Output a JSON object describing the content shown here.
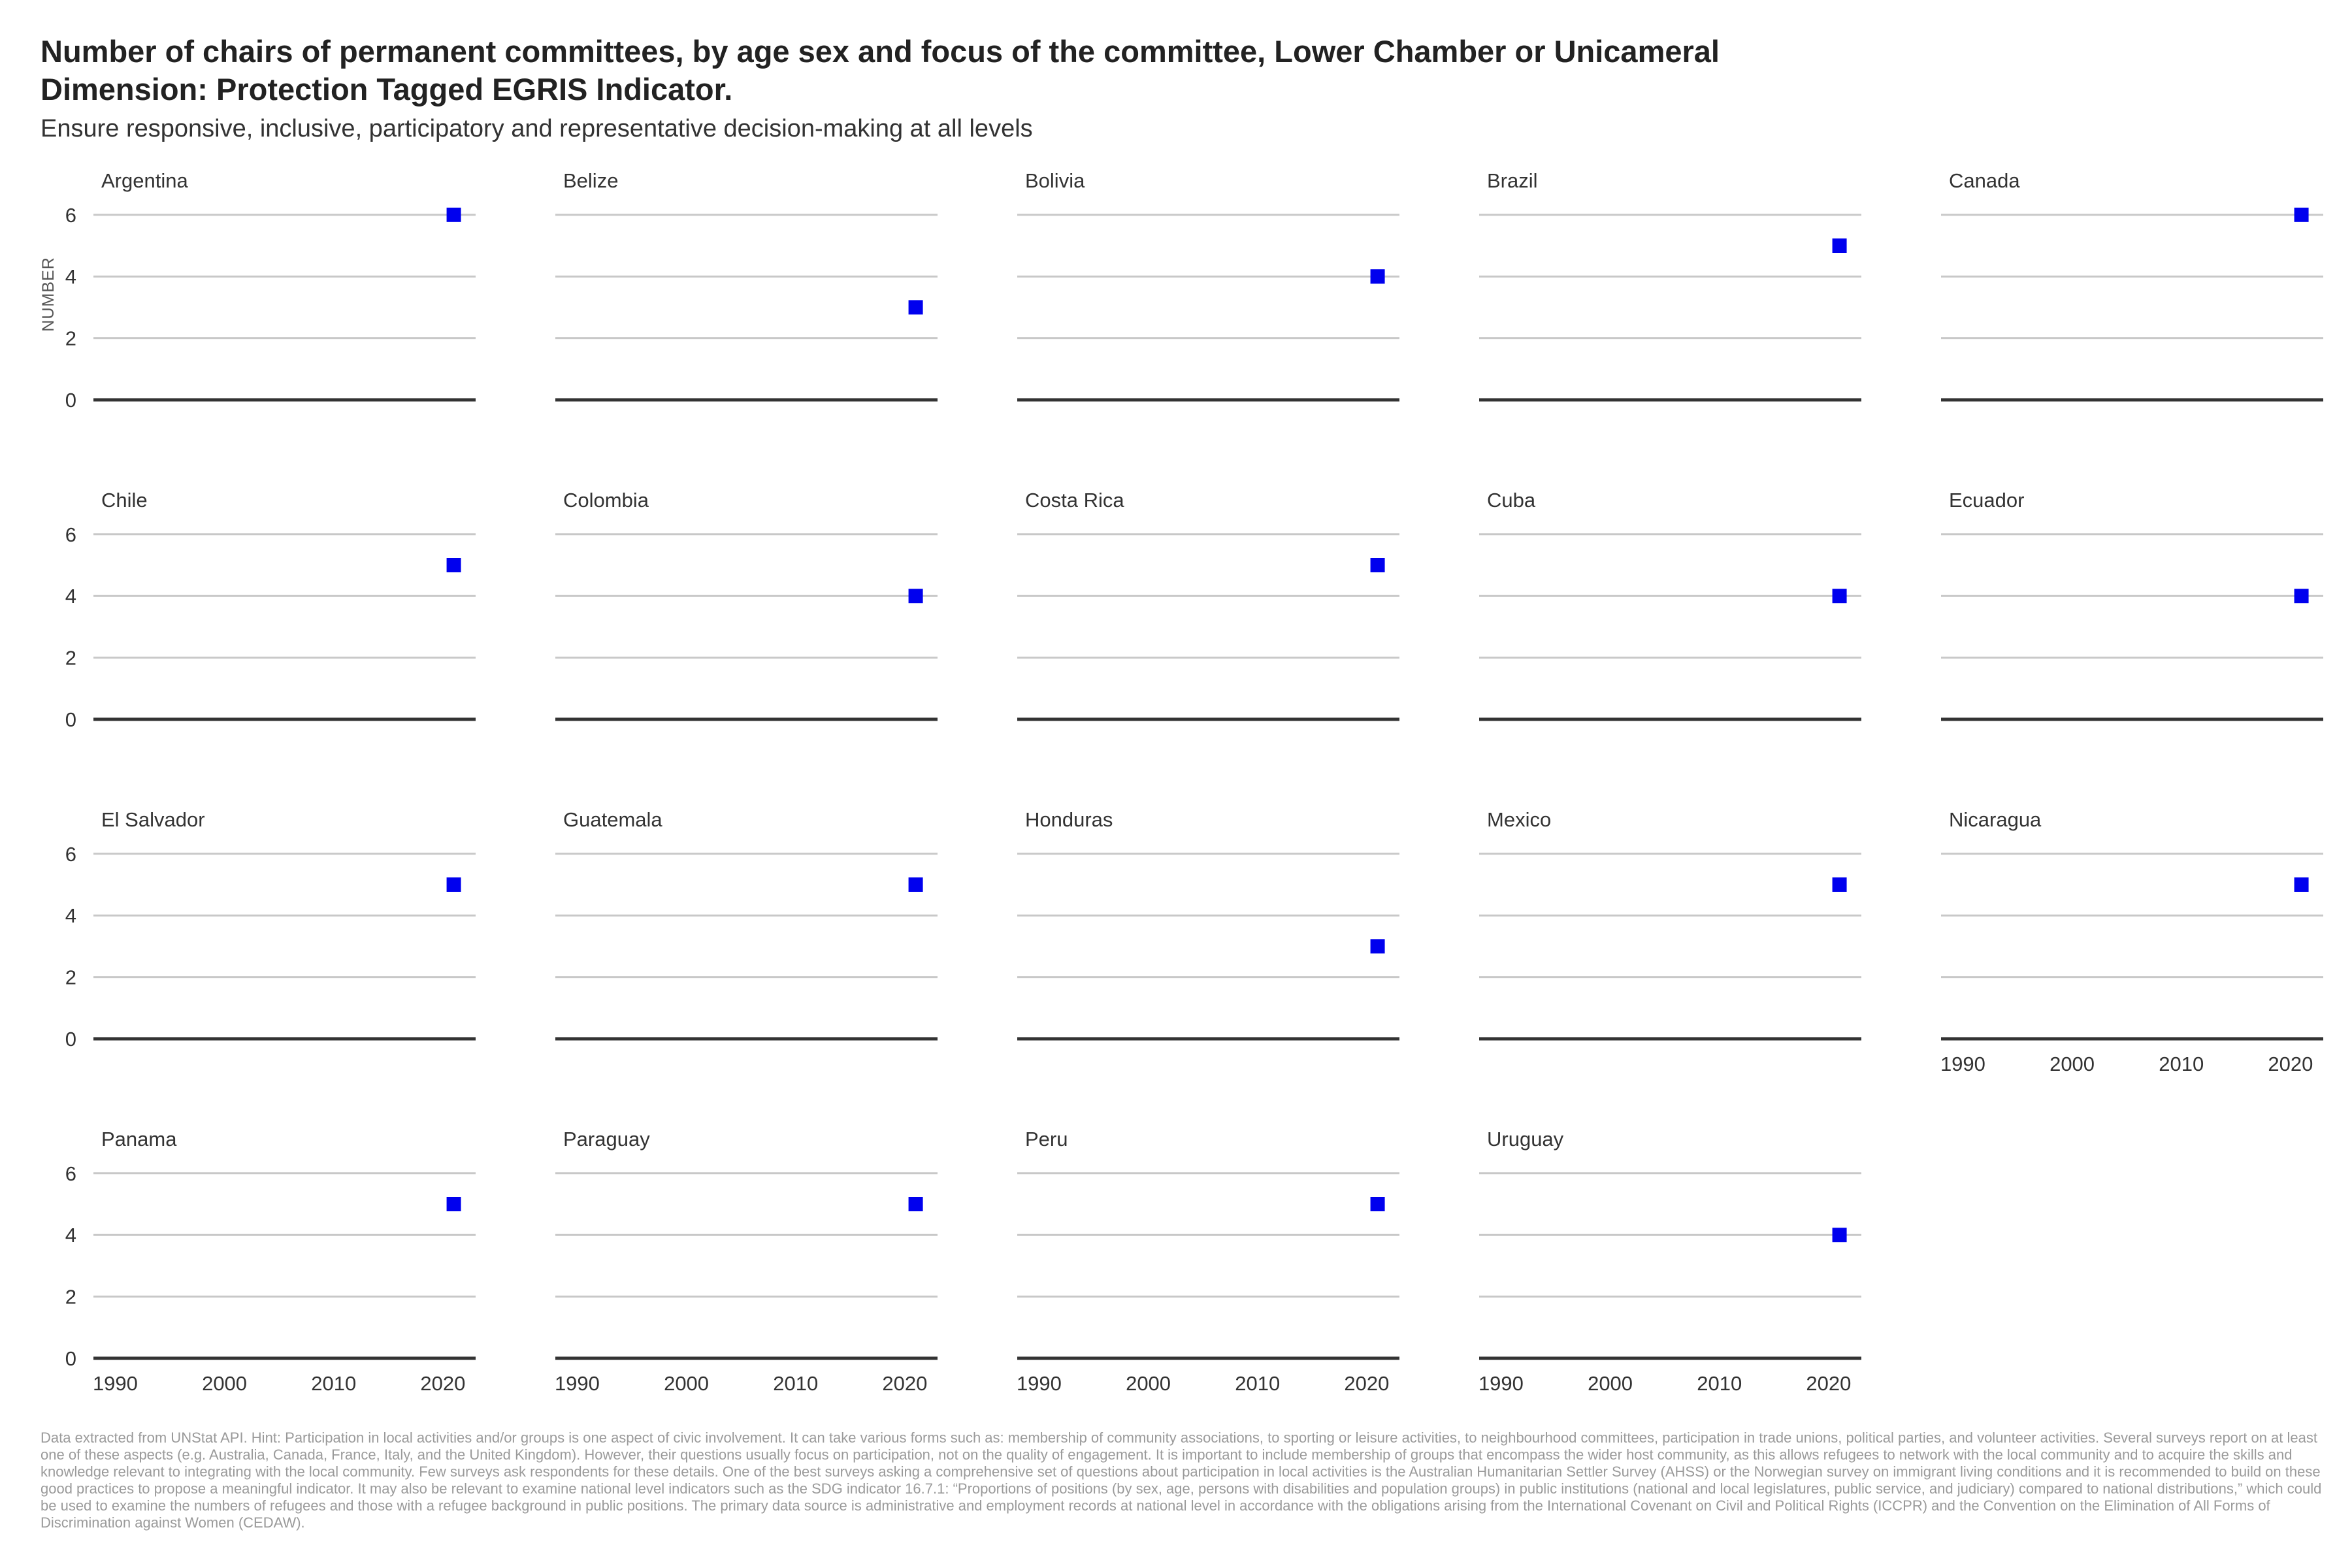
{
  "title_lines": [
    "Number of chairs of permanent committees, by age sex and focus of the committee, Lower Chamber or Unicameral",
    "Dimension: Protection Tagged EGRIS Indicator."
  ],
  "subtitle": "Ensure responsive, inclusive, participatory and representative decision-making at all levels",
  "footnote": "Data extracted from UNStat API. Hint: Participation in local activities and/or groups is one aspect of civic involvement. It can take various forms such as: membership of community associations, to sporting or leisure activities, to neighbourhood committees, participation in trade unions, political parties, and volunteer activities. Several surveys report on at least one of these aspects (e.g. Australia, Canada, France, Italy, and the United Kingdom). However, their questions usually focus on participation, not on the quality of engagement. It is important to include membership of groups that encompass the wider host community, as this allows refugees to network with the local community and to acquire the skills and knowledge relevant to integrating with the local community. Few surveys ask respondents for these details. One of the best surveys asking a comprehensive set of questions about participation in local activities is the Australian Humanitarian Settler Survey (AHSS) or the Norwegian survey on immigrant living conditions and it is recommended to build on these good practices to propose a meaningful indicator. It may also be relevant to examine national level indicators such as the SDG indicator 16.7.1: “Proportions of positions (by sex, age, persons with disabilities and population groups) in public institutions (national and local legislatures, public service, and judiciary) compared to national distributions,” which could be used to examine the numbers of refugees and those with a refugee background in public positions. The primary data source is administrative and employment records at national level in accordance with the obligations arising from the International Covenant on Civil and Political Rights (ICCPR) and the Convention on the Elimination of All Forms of Discrimination against Women (CEDAW).",
  "colors": {
    "marker": "#0000ee",
    "gridline": "#c8c8c8",
    "baseline": "#333333",
    "text": "#333333"
  },
  "chart_data": {
    "type": "scatter",
    "facet": "small-multiples",
    "ylabel": "NUMBER",
    "ylim": [
      0,
      6
    ],
    "y_ticks": [
      0,
      2,
      4,
      6
    ],
    "x_ticks": [
      1990,
      2000,
      2010,
      2020
    ],
    "xlim": [
      1988,
      2023
    ],
    "grid": true,
    "marker": "square",
    "panels": [
      {
        "country": "Argentina",
        "x": [
          2021
        ],
        "y": [
          6
        ]
      },
      {
        "country": "Belize",
        "x": [
          2021
        ],
        "y": [
          3
        ]
      },
      {
        "country": "Bolivia",
        "x": [
          2021
        ],
        "y": [
          4
        ]
      },
      {
        "country": "Brazil",
        "x": [
          2021
        ],
        "y": [
          5
        ]
      },
      {
        "country": "Canada",
        "x": [
          2021
        ],
        "y": [
          6
        ]
      },
      {
        "country": "Chile",
        "x": [
          2021
        ],
        "y": [
          5
        ]
      },
      {
        "country": "Colombia",
        "x": [
          2021
        ],
        "y": [
          4
        ]
      },
      {
        "country": "Costa Rica",
        "x": [
          2021
        ],
        "y": [
          5
        ]
      },
      {
        "country": "Cuba",
        "x": [
          2021
        ],
        "y": [
          4
        ]
      },
      {
        "country": "Ecuador",
        "x": [
          2021
        ],
        "y": [
          4
        ]
      },
      {
        "country": "El Salvador",
        "x": [
          2021
        ],
        "y": [
          5
        ]
      },
      {
        "country": "Guatemala",
        "x": [
          2021
        ],
        "y": [
          5
        ]
      },
      {
        "country": "Honduras",
        "x": [
          2021
        ],
        "y": [
          3
        ]
      },
      {
        "country": "Mexico",
        "x": [
          2021
        ],
        "y": [
          5
        ]
      },
      {
        "country": "Nicaragua",
        "x": [
          2021
        ],
        "y": [
          5
        ]
      },
      {
        "country": "Panama",
        "x": [
          2021
        ],
        "y": [
          5
        ]
      },
      {
        "country": "Paraguay",
        "x": [
          2021
        ],
        "y": [
          5
        ]
      },
      {
        "country": "Peru",
        "x": [
          2021
        ],
        "y": [
          5
        ]
      },
      {
        "country": "Uruguay",
        "x": [
          2021
        ],
        "y": [
          4
        ]
      }
    ]
  }
}
